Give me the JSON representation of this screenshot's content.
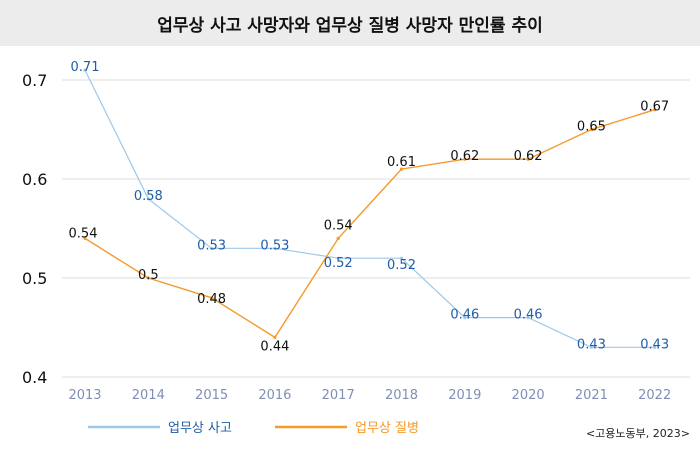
{
  "chart_data": {
    "type": "line",
    "title": "업무상 사고 사망자와 업무상 질병 사망자 만인률 추이",
    "x": [
      "2013",
      "2014",
      "2015",
      "2016",
      "2017",
      "2018",
      "2019",
      "2020",
      "2021",
      "2022"
    ],
    "series": [
      {
        "name": "업무상 사고",
        "values": [
          0.71,
          0.58,
          0.53,
          0.53,
          0.52,
          0.52,
          0.46,
          0.46,
          0.43,
          0.43
        ],
        "color": "#9dc8ea",
        "label_color": "#1f5ea8"
      },
      {
        "name": "업무상 질병",
        "values": [
          0.54,
          0.5,
          0.48,
          0.44,
          0.54,
          0.61,
          0.62,
          0.62,
          0.65,
          0.67
        ],
        "color": "#f39a2b",
        "label_color": "#111111"
      }
    ],
    "yticks": [
      0.4,
      0.5,
      0.6,
      0.7
    ],
    "ytick_labels": [
      "0.4",
      "0.5",
      "0.6",
      "0.7"
    ],
    "ylim": [
      0.4,
      0.72
    ],
    "grid": true,
    "legend_position": "bottom-left",
    "source": "<고용노동부, 2023>"
  }
}
